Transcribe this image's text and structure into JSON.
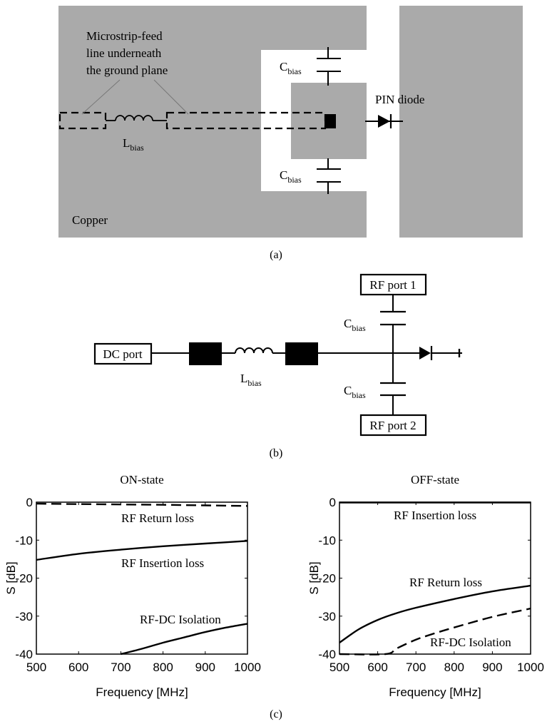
{
  "colors": {
    "copper": "#aaaaaa",
    "background": "#ffffff",
    "ink": "#000000"
  },
  "layout_a": {
    "annotation": [
      "Microstrip-feed",
      "line underneath",
      "the ground plane"
    ],
    "cbias_top": {
      "main": "C",
      "sub": "bias"
    },
    "cbias_bottom": {
      "main": "C",
      "sub": "bias"
    },
    "lbias": {
      "main": "L",
      "sub": "bias"
    },
    "pin_diode": "PIN diode",
    "copper": "Copper",
    "caption": "(a)"
  },
  "circuit_b": {
    "dc_port": "DC port",
    "rf_port1": "RF port 1",
    "rf_port2": "RF port 2",
    "cbias_top": {
      "main": "C",
      "sub": "bias"
    },
    "cbias_bottom": {
      "main": "C",
      "sub": "bias"
    },
    "lbias": {
      "main": "L",
      "sub": "bias"
    },
    "caption": "(b)"
  },
  "caption_c": "(c)",
  "chart_data": [
    {
      "type": "line",
      "title": "ON-state",
      "xlabel": "Frequency [MHz]",
      "ylabel": "S [dB]",
      "xlim": [
        500,
        1000
      ],
      "ylim": [
        -40,
        0
      ],
      "xticks": [
        500,
        600,
        700,
        800,
        900,
        1000
      ],
      "yticks": [
        0,
        -10,
        -20,
        -30,
        -40
      ],
      "grid": false,
      "series": [
        {
          "name": "RF Return loss",
          "style": "dashed",
          "x": [
            500,
            600,
            700,
            800,
            900,
            1000
          ],
          "y": [
            -0.4,
            -0.5,
            -0.6,
            -0.7,
            -0.85,
            -1.0
          ]
        },
        {
          "name": "RF Insertion loss",
          "style": "solid",
          "x": [
            500,
            600,
            700,
            800,
            900,
            1000
          ],
          "y": [
            -15.2,
            -13.6,
            -12.5,
            -11.6,
            -10.9,
            -10.2
          ]
        },
        {
          "name": "RF-DC Isolation",
          "style": "solid",
          "x": [
            700,
            750,
            800,
            850,
            900,
            950,
            1000
          ],
          "y": [
            -40,
            -38.6,
            -37.0,
            -35.6,
            -34.2,
            -33.0,
            -32.0
          ]
        }
      ]
    },
    {
      "type": "line",
      "title": "OFF-state",
      "xlabel": "Frequency [MHz]",
      "ylabel": "S [dB]",
      "xlim": [
        500,
        1000
      ],
      "ylim": [
        -40,
        0
      ],
      "xticks": [
        500,
        600,
        700,
        800,
        900,
        1000
      ],
      "yticks": [
        0,
        -10,
        -20,
        -30,
        -40
      ],
      "grid": false,
      "series": [
        {
          "name": "RF Insertion loss",
          "style": "solid",
          "x": [
            500,
            600,
            700,
            800,
            900,
            1000
          ],
          "y": [
            -0.1,
            -0.1,
            -0.1,
            -0.1,
            -0.1,
            -0.1
          ]
        },
        {
          "name": "RF Return loss",
          "style": "solid",
          "x": [
            500,
            550,
            600,
            650,
            700,
            800,
            900,
            1000
          ],
          "y": [
            -37.0,
            -33.5,
            -31.0,
            -29.2,
            -27.8,
            -25.5,
            -23.5,
            -22.0
          ]
        },
        {
          "name": "RF-DC Isolation",
          "style": "dashed",
          "x": [
            500,
            620,
            650,
            700,
            750,
            800,
            900,
            1000
          ],
          "y": [
            -40,
            -40,
            -38.5,
            -36.2,
            -34.5,
            -33.0,
            -30.2,
            -28.0
          ]
        }
      ]
    }
  ]
}
